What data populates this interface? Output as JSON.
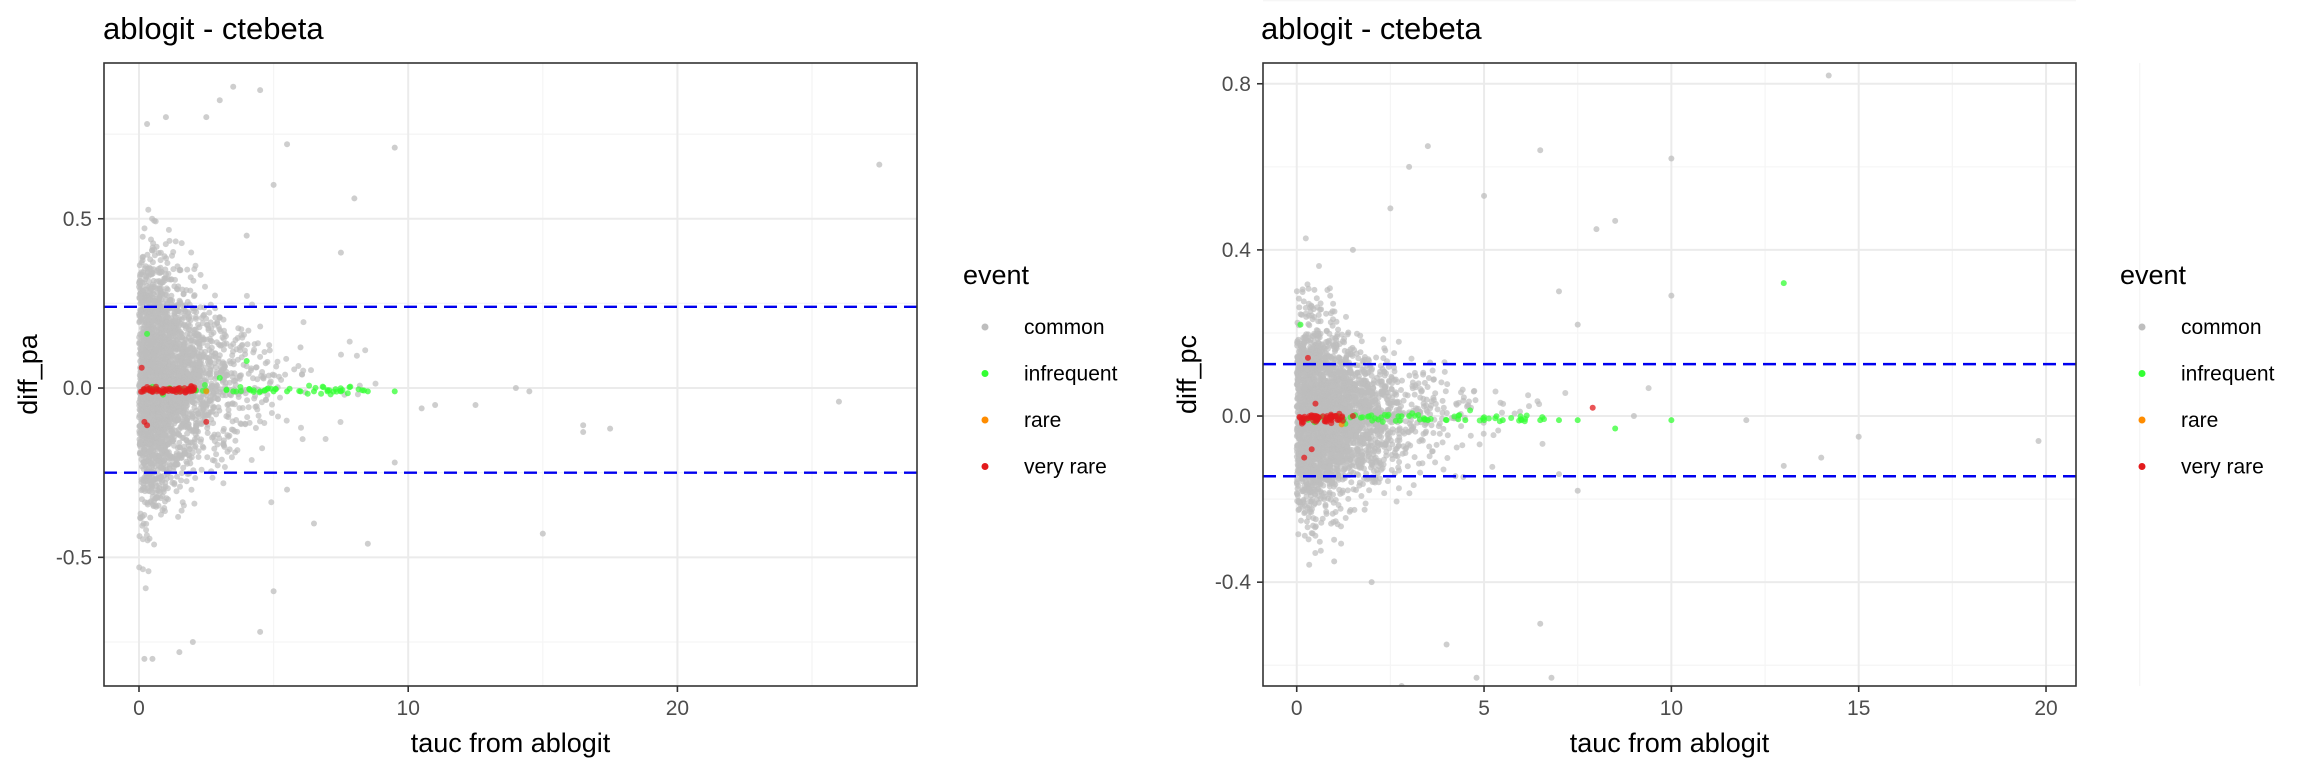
{
  "colors": {
    "common": "#bebebe",
    "infrequent": "#33ff33",
    "rare": "#ff8c00",
    "very_rare": "#e31a1c",
    "threshold": "#0000ee",
    "grid_major": "#ebebeb",
    "grid_minor": "#f5f5f5",
    "panel_border": "#333333"
  },
  "chart_data": [
    {
      "type": "scatter",
      "title": "ablogit - ctebeta",
      "xlabel": "tauc from ablogit",
      "ylabel": "diff_pa",
      "xlim": [
        -1.3,
        28.9
      ],
      "ylim": [
        -0.88,
        0.96
      ],
      "x_ticks": [
        0,
        10,
        20
      ],
      "x_tick_labels": [
        "0",
        "10",
        "20"
      ],
      "y_ticks": [
        -0.5,
        0.0,
        0.5
      ],
      "y_tick_labels": [
        "-0.5",
        "0.0",
        "0.5"
      ],
      "grid": true,
      "legend": {
        "title": "event",
        "position": "right",
        "entries": [
          "common",
          "infrequent",
          "rare",
          "very rare"
        ]
      },
      "hlines": [
        0.24,
        -0.25
      ],
      "series": [
        {
          "name": "common",
          "points": [
            [
              27.5,
              0.66
            ],
            [
              26,
              -0.04
            ],
            [
              17.5,
              -0.12
            ],
            [
              16.5,
              -0.11
            ],
            [
              16.5,
              -0.13
            ],
            [
              15,
              -0.43
            ],
            [
              14.5,
              -0.01
            ],
            [
              14,
              0.0
            ],
            [
              12.5,
              -0.05
            ],
            [
              11,
              -0.05
            ],
            [
              10.5,
              -0.06
            ],
            [
              9.5,
              0.71
            ],
            [
              9.5,
              -0.22
            ],
            [
              8.5,
              -0.46
            ],
            [
              8,
              0.56
            ],
            [
              7.5,
              0.4
            ],
            [
              6.5,
              -0.4
            ],
            [
              6,
              0.12
            ],
            [
              5.5,
              0.72
            ],
            [
              5.5,
              -0.3
            ],
            [
              5,
              0.6
            ],
            [
              5,
              -0.6
            ],
            [
              4.5,
              0.88
            ],
            [
              4.5,
              -0.72
            ],
            [
              4,
              0.45
            ],
            [
              3.5,
              0.89
            ],
            [
              3,
              0.85
            ],
            [
              2.5,
              0.8
            ],
            [
              2,
              -0.75
            ],
            [
              1.5,
              -0.78
            ],
            [
              1,
              0.8
            ],
            [
              0.5,
              -0.8
            ],
            [
              0.3,
              0.78
            ],
            [
              0.2,
              -0.8
            ]
          ],
          "cloud_n": 3000
        },
        {
          "name": "infrequent",
          "points": [
            [
              9.5,
              -0.01
            ],
            [
              8.5,
              -0.01
            ],
            [
              7.5,
              -0.01
            ],
            [
              7,
              -0.01
            ],
            [
              6.5,
              -0.01
            ],
            [
              6,
              -0.01
            ],
            [
              5.5,
              -0.01
            ],
            [
              5,
              -0.01
            ],
            [
              4.5,
              -0.01
            ],
            [
              4,
              0.08
            ],
            [
              3.5,
              -0.01
            ],
            [
              3,
              0.03
            ],
            [
              0.3,
              0.16
            ]
          ],
          "cloud_n": 60
        },
        {
          "name": "rare",
          "points": [
            [
              2.5,
              -0.01
            ]
          ],
          "cloud_n": 0
        },
        {
          "name": "very rare",
          "points": [
            [
              2.5,
              -0.1
            ],
            [
              0.2,
              -0.1
            ],
            [
              0.3,
              -0.11
            ],
            [
              0.1,
              0.06
            ],
            [
              2,
              0.0
            ],
            [
              1.5,
              0.0
            ]
          ],
          "cloud_n": 60
        }
      ]
    },
    {
      "type": "scatter",
      "title": "ablogit - ctebeta",
      "xlabel": "tauc from ablogit",
      "ylabel": "diff_pc",
      "xlim": [
        -0.9,
        20.8
      ],
      "ylim": [
        -0.65,
        0.85
      ],
      "x_ticks": [
        0,
        5,
        10,
        15,
        20
      ],
      "x_tick_labels": [
        "0",
        "5",
        "10",
        "15",
        "20"
      ],
      "y_ticks": [
        -0.4,
        0.0,
        0.4,
        0.8
      ],
      "y_tick_labels": [
        "-0.4",
        "0.0",
        "0.4",
        "0.8"
      ],
      "grid": true,
      "legend": {
        "title": "event",
        "position": "right",
        "entries": [
          "common",
          "infrequent",
          "rare",
          "very rare"
        ]
      },
      "hlines": [
        0.125,
        -0.145
      ],
      "series": [
        {
          "name": "common",
          "points": [
            [
              14.2,
              0.82
            ],
            [
              19.8,
              -0.06
            ],
            [
              15,
              -0.05
            ],
            [
              14,
              -0.1
            ],
            [
              13,
              -0.12
            ],
            [
              12,
              -0.01
            ],
            [
              10,
              0.62
            ],
            [
              10,
              0.29
            ],
            [
              9,
              0.0
            ],
            [
              8.5,
              0.47
            ],
            [
              8,
              0.45
            ],
            [
              7.5,
              0.22
            ],
            [
              7.5,
              -0.18
            ],
            [
              7,
              0.3
            ],
            [
              7,
              -0.14
            ],
            [
              6.5,
              0.64
            ],
            [
              6.5,
              -0.5
            ],
            [
              6.8,
              -0.63
            ],
            [
              5,
              0.53
            ],
            [
              4.8,
              -0.63
            ],
            [
              4,
              -0.55
            ],
            [
              3.5,
              0.65
            ],
            [
              3,
              0.6
            ],
            [
              2.8,
              -0.65
            ],
            [
              2.5,
              0.5
            ],
            [
              2,
              -0.4
            ],
            [
              1.5,
              0.4
            ],
            [
              1,
              -0.35
            ]
          ],
          "cloud_n": 3000
        },
        {
          "name": "infrequent",
          "points": [
            [
              13,
              0.32
            ],
            [
              10,
              -0.01
            ],
            [
              8.5,
              -0.03
            ],
            [
              7.5,
              -0.01
            ],
            [
              7,
              -0.01
            ],
            [
              6.5,
              -0.01
            ],
            [
              6,
              -0.01
            ],
            [
              5.5,
              -0.01
            ],
            [
              5,
              -0.01
            ],
            [
              4.5,
              -0.01
            ],
            [
              4,
              -0.01
            ],
            [
              3.5,
              -0.01
            ],
            [
              3,
              0.0
            ],
            [
              0.1,
              0.22
            ]
          ],
          "cloud_n": 60
        },
        {
          "name": "rare",
          "points": [
            [
              1.2,
              -0.02
            ]
          ],
          "cloud_n": 0
        },
        {
          "name": "very rare",
          "points": [
            [
              7.9,
              0.02
            ],
            [
              0.3,
              0.14
            ],
            [
              0.5,
              0.03
            ],
            [
              0.2,
              -0.1
            ],
            [
              0.4,
              -0.08
            ],
            [
              1.5,
              0.0
            ]
          ],
          "cloud_n": 60
        }
      ]
    }
  ]
}
